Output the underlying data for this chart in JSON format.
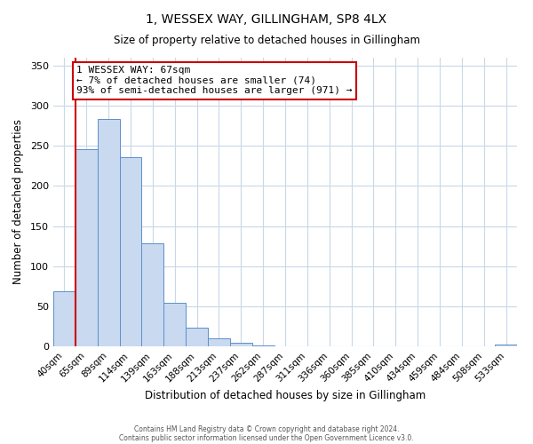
{
  "title": "1, WESSEX WAY, GILLINGHAM, SP8 4LX",
  "subtitle": "Size of property relative to detached houses in Gillingham",
  "xlabel": "Distribution of detached houses by size in Gillingham",
  "ylabel": "Number of detached properties",
  "bar_labels": [
    "40sqm",
    "65sqm",
    "89sqm",
    "114sqm",
    "139sqm",
    "163sqm",
    "188sqm",
    "213sqm",
    "237sqm",
    "262sqm",
    "287sqm",
    "311sqm",
    "336sqm",
    "360sqm",
    "385sqm",
    "410sqm",
    "434sqm",
    "459sqm",
    "484sqm",
    "508sqm",
    "533sqm"
  ],
  "bar_values": [
    69,
    246,
    284,
    236,
    129,
    54,
    23,
    10,
    4,
    1,
    0,
    0,
    0,
    0,
    0,
    0,
    0,
    0,
    0,
    0,
    2
  ],
  "bar_color": "#c9d9f0",
  "bar_edge_color": "#5b8fcc",
  "vline_x": 0.5,
  "vline_color": "#cc0000",
  "annotation_title": "1 WESSEX WAY: 67sqm",
  "annotation_line1": "← 7% of detached houses are smaller (74)",
  "annotation_line2": "93% of semi-detached houses are larger (971) →",
  "annotation_box_color": "#ffffff",
  "annotation_box_edge": "#cc0000",
  "ylim": [
    0,
    360
  ],
  "yticks": [
    0,
    50,
    100,
    150,
    200,
    250,
    300,
    350
  ],
  "footer1": "Contains HM Land Registry data © Crown copyright and database right 2024.",
  "footer2": "Contains public sector information licensed under the Open Government Licence v3.0.",
  "background_color": "#ffffff",
  "grid_color": "#c8d8e8"
}
